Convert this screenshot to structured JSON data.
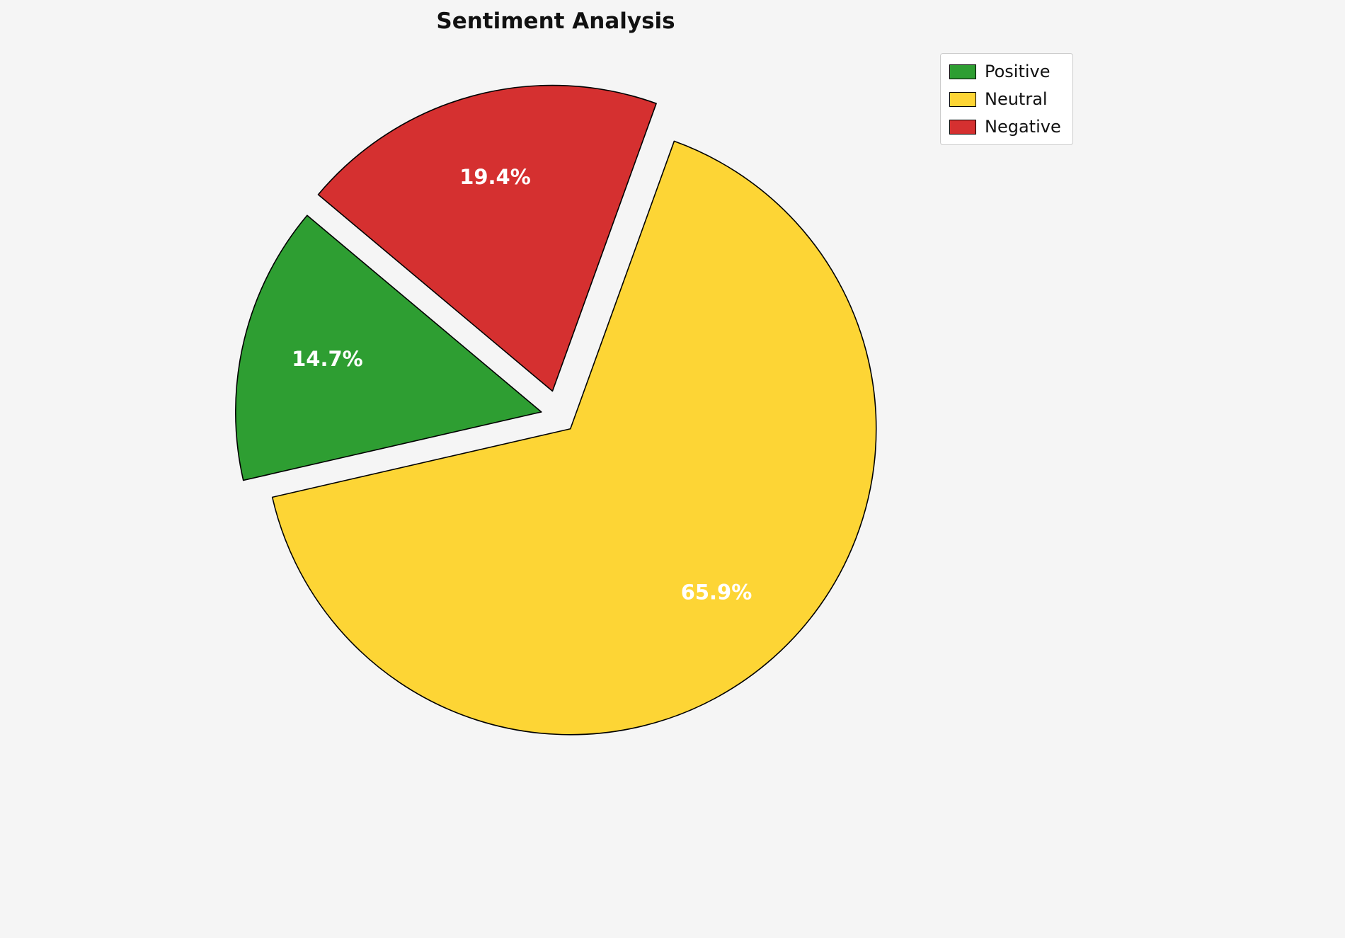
{
  "chart_data": {
    "type": "pie",
    "title": "Sentiment Analysis",
    "labels": [
      "Positive",
      "Neutral",
      "Negative"
    ],
    "values": [
      14.7,
      65.9,
      19.4
    ],
    "percent_labels": [
      "14.7%",
      "65.9%",
      "19.4%"
    ],
    "colors": [
      "#2e9e32",
      "#fdd535",
      "#d53030"
    ],
    "explode": [
      0.06,
      0.055,
      0.085
    ],
    "start_angle": 140,
    "direction": "counterclockwise",
    "edge_color": "#000000",
    "percent_label_color": "#ffffff",
    "legend_position": "upper right",
    "background": "#f5f5f5"
  }
}
